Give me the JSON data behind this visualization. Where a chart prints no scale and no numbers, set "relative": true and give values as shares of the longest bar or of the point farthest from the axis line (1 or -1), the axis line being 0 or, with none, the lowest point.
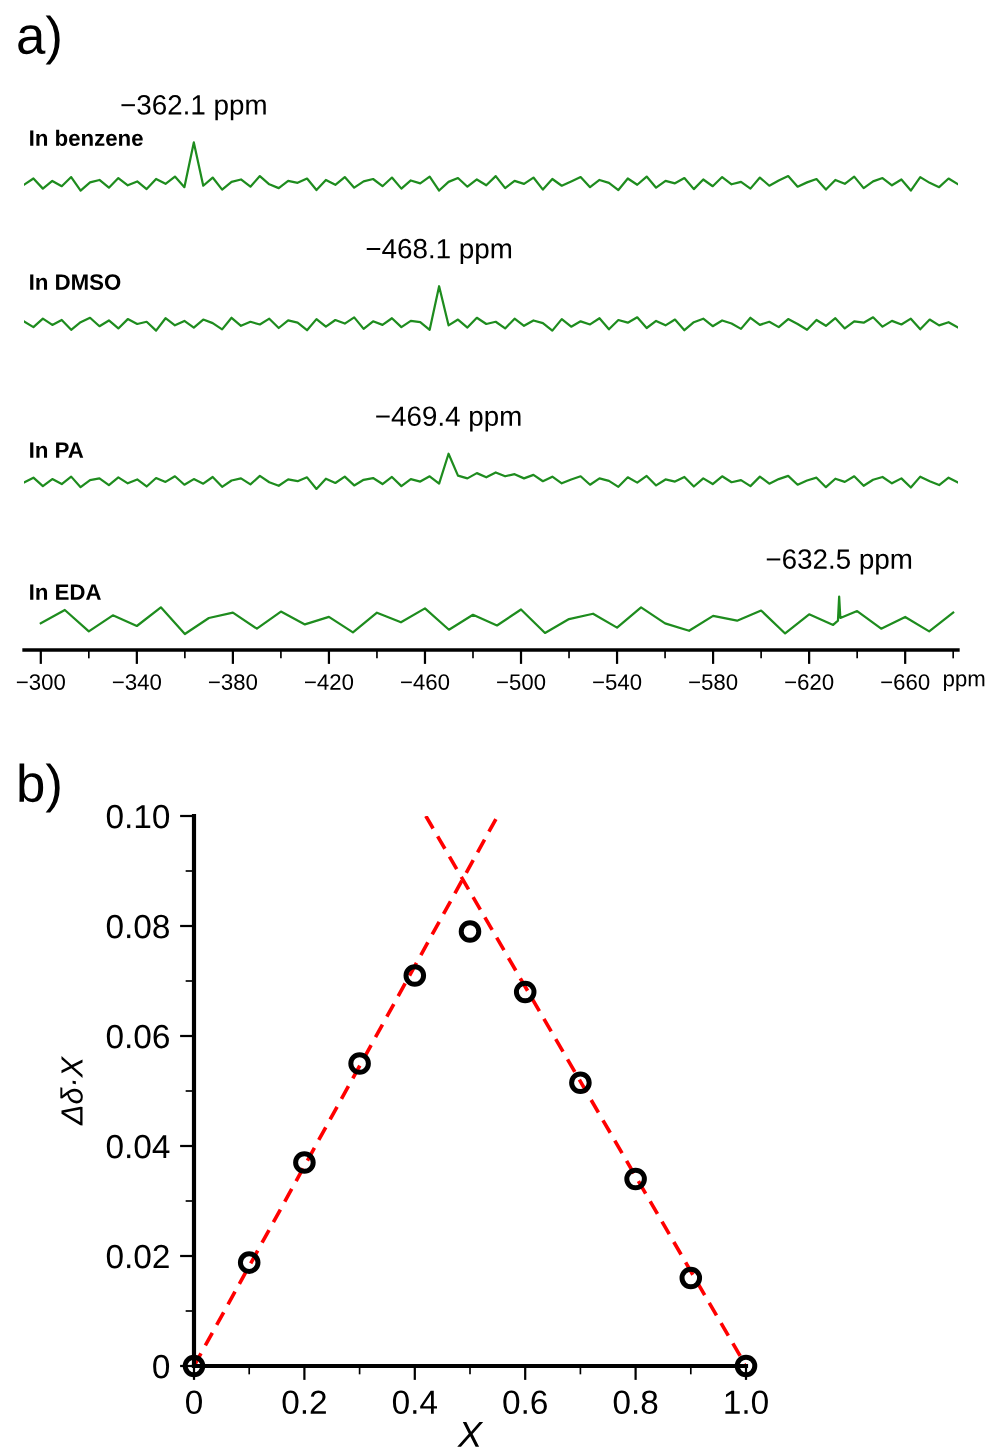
{
  "chart_data": [
    {
      "type": "line",
      "relative": true,
      "title": "In benzene",
      "color": "#1e8c1e",
      "tick_labels": false,
      "annotations": [
        "a)",
        {
          "text": "−362.1 ppm",
          "y": 1
        }
      ],
      "categories": [
        null,
        null,
        null,
        null,
        null,
        null,
        null,
        null,
        null,
        null,
        null,
        null,
        null,
        null,
        null,
        null,
        null,
        null,
        null,
        null,
        null,
        null,
        null,
        null,
        null,
        null,
        null,
        null,
        null,
        null,
        null,
        null,
        null,
        null,
        null,
        null,
        null,
        null,
        null,
        null,
        null,
        null,
        null,
        null,
        null,
        null,
        null,
        null,
        null,
        null,
        null,
        null,
        null,
        null,
        null,
        null,
        null,
        null,
        null,
        null,
        null,
        null,
        null,
        null,
        null,
        null,
        null,
        null,
        null,
        null,
        null,
        null,
        null,
        null,
        null,
        null,
        null,
        null,
        null,
        null,
        null,
        null,
        null,
        null,
        null,
        null,
        null,
        null,
        null,
        null,
        null,
        null,
        null,
        null,
        null,
        null,
        null,
        null,
        null,
        null
      ],
      "values": [
        0.12,
        0.25,
        0.04,
        0.2,
        0.09,
        0.28,
        0.0,
        0.17,
        0.22,
        0.06,
        0.26,
        0.11,
        0.19,
        0.03,
        0.24,
        0.14,
        0.29,
        0.07,
        1,
        0.1,
        0.27,
        0.02,
        0.18,
        0.23,
        0.08,
        0.3,
        0.13,
        0.05,
        0.2,
        0.16,
        0.25,
        0.01,
        0.22,
        0.12,
        0.28,
        0.06,
        0.19,
        0.24,
        0.09,
        0.27,
        0.04,
        0.21,
        0.15,
        0.29,
        0.0,
        0.18,
        0.26,
        0.08,
        0.23,
        0.11,
        0.3,
        0.05,
        0.2,
        0.14,
        0.27,
        0.02,
        0.24,
        0.1,
        0.19,
        0.28,
        0.07,
        0.22,
        0.16,
        0.01,
        0.25,
        0.12,
        0.29,
        0.06,
        0.2,
        0.15,
        0.26,
        0.03,
        0.23,
        0.09,
        0.28,
        0.13,
        0.18,
        0.04,
        0.27,
        0.1,
        0.21,
        0.3,
        0.08,
        0.17,
        0.24,
        0.02,
        0.22,
        0.14,
        0.29,
        0.05,
        0.19,
        0.26,
        0.11,
        0.23,
        0.0,
        0.28,
        0.16,
        0.07,
        0.25,
        0.13
      ]
    },
    {
      "type": "line",
      "relative": true,
      "title": "In DMSO",
      "color": "#1e8c1e",
      "tick_labels": false,
      "annotations": [
        {
          "text": "−468.1 ppm",
          "y": 1
        }
      ],
      "categories": [
        null,
        null,
        null,
        null,
        null,
        null,
        null,
        null,
        null,
        null,
        null,
        null,
        null,
        null,
        null,
        null,
        null,
        null,
        null,
        null,
        null,
        null,
        null,
        null,
        null,
        null,
        null,
        null,
        null,
        null,
        null,
        null,
        null,
        null,
        null,
        null,
        null,
        null,
        null,
        null,
        null,
        null,
        null,
        null,
        null,
        null,
        null,
        null,
        null,
        null,
        null,
        null,
        null,
        null,
        null,
        null,
        null,
        null,
        null,
        null,
        null,
        null,
        null,
        null,
        null,
        null,
        null,
        null,
        null,
        null,
        null,
        null,
        null,
        null,
        null,
        null,
        null,
        null,
        null,
        null,
        null,
        null,
        null,
        null,
        null,
        null,
        null,
        null,
        null,
        null,
        null,
        null,
        null,
        null,
        null,
        null,
        null,
        null,
        null,
        null
      ],
      "values": [
        0.21,
        0.08,
        0.27,
        0.13,
        0.24,
        0.02,
        0.19,
        0.29,
        0.1,
        0.23,
        0.05,
        0.26,
        0.15,
        0.2,
        0.0,
        0.28,
        0.12,
        0.22,
        0.07,
        0.25,
        0.17,
        0.03,
        0.29,
        0.11,
        0.2,
        0.14,
        0.27,
        0.06,
        0.23,
        0.18,
        0.01,
        0.26,
        0.09,
        0.24,
        0.16,
        0.3,
        0.04,
        0.21,
        0.13,
        0.28,
        0.08,
        0.22,
        0.19,
        0.02,
        1,
        0.12,
        0.25,
        0.07,
        0.29,
        0.15,
        0.2,
        0.05,
        0.27,
        0.11,
        0.23,
        0.17,
        0.0,
        0.26,
        0.09,
        0.21,
        0.14,
        0.28,
        0.03,
        0.24,
        0.18,
        0.3,
        0.06,
        0.22,
        0.12,
        0.25,
        0.01,
        0.19,
        0.27,
        0.1,
        0.23,
        0.16,
        0.04,
        0.29,
        0.13,
        0.2,
        0.08,
        0.26,
        0.15,
        0.02,
        0.24,
        0.11,
        0.28,
        0.05,
        0.21,
        0.18,
        0.3,
        0.09,
        0.22,
        0.14,
        0.27,
        0.03,
        0.25,
        0.12,
        0.19,
        0.07
      ]
    },
    {
      "type": "line",
      "relative": true,
      "title": "In PA",
      "color": "#1e8c1e",
      "tick_labels": false,
      "annotations": [
        {
          "text": "−469.4 ppm",
          "y": 1
        }
      ],
      "categories": [
        null,
        null,
        null,
        null,
        null,
        null,
        null,
        null,
        null,
        null,
        null,
        null,
        null,
        null,
        null,
        null,
        null,
        null,
        null,
        null,
        null,
        null,
        null,
        null,
        null,
        null,
        null,
        null,
        null,
        null,
        null,
        null,
        null,
        null,
        null,
        null,
        null,
        null,
        null,
        null,
        null,
        null,
        null,
        null,
        null,
        null,
        null,
        null,
        null,
        null,
        null,
        null,
        null,
        null,
        null,
        null,
        null,
        null,
        null,
        null,
        null,
        null,
        null,
        null,
        null,
        null,
        null,
        null,
        null,
        null,
        null,
        null,
        null,
        null,
        null,
        null,
        null,
        null,
        null,
        null,
        null,
        null,
        null,
        null,
        null,
        null,
        null,
        null,
        null,
        null,
        null,
        null,
        null,
        null,
        null,
        null,
        null,
        null,
        null,
        null
      ],
      "values": [
        0.18,
        0.32,
        0.08,
        0.28,
        0.14,
        0.35,
        0.05,
        0.25,
        0.3,
        0.11,
        0.33,
        0.16,
        0.27,
        0.07,
        0.31,
        0.2,
        0.36,
        0.12,
        0.28,
        0.15,
        0.34,
        0.06,
        0.24,
        0.3,
        0.13,
        0.37,
        0.19,
        0.09,
        0.27,
        0.22,
        0.33,
        0.0,
        0.29,
        0.17,
        0.35,
        0.1,
        0.26,
        0.31,
        0.14,
        0.34,
        0.08,
        0.28,
        0.21,
        0.36,
        0.15,
        1,
        0.38,
        0.3,
        0.45,
        0.33,
        0.47,
        0.36,
        0.42,
        0.3,
        0.4,
        0.22,
        0.35,
        0.16,
        0.27,
        0.36,
        0.12,
        0.3,
        0.23,
        0.06,
        0.33,
        0.18,
        0.37,
        0.1,
        0.27,
        0.21,
        0.34,
        0.07,
        0.3,
        0.14,
        0.36,
        0.19,
        0.25,
        0.08,
        0.35,
        0.15,
        0.28,
        0.37,
        0.12,
        0.24,
        0.32,
        0.05,
        0.29,
        0.2,
        0.36,
        0.09,
        0.26,
        0.34,
        0.16,
        0.3,
        0.04,
        0.35,
        0.22,
        0.11,
        0.32,
        0.18
      ]
    },
    {
      "type": "line",
      "relative": true,
      "title": "In EDA",
      "color": "#1e8c1e",
      "tick_labels": "x",
      "xlabel": "ppm",
      "xlim": [
        -293,
        -682
      ],
      "annotations": [
        {
          "text": "−632.5 ppm",
          "x": -632.5,
          "y": 1
        }
      ],
      "xticks": [
        {
          "value": -300,
          "label": "−300"
        },
        {
          "value": -340,
          "label": "−340"
        },
        {
          "value": -380,
          "label": "−380"
        },
        {
          "value": -420,
          "label": "−420"
        },
        {
          "value": -460,
          "label": "−460"
        },
        {
          "value": -500,
          "label": "−500"
        },
        {
          "value": -540,
          "label": "−540"
        },
        {
          "value": -580,
          "label": "−580"
        },
        {
          "value": -620,
          "label": "−620"
        },
        {
          "value": -660,
          "label": "−660"
        }
      ],
      "x": [
        -300,
        -310,
        -320,
        -330,
        -340,
        -350,
        -360,
        -370,
        -380,
        -390,
        -400,
        -410,
        -420,
        -430,
        -440,
        -450,
        -460,
        -470,
        -480,
        -490,
        -500,
        -510,
        -520,
        -530,
        -540,
        -550,
        -560,
        -570,
        -580,
        -590,
        -600,
        -610,
        -620,
        -630,
        -632,
        -632.5,
        -633,
        -640,
        -650,
        -660,
        -670,
        -680
      ],
      "values": [
        0.5,
        0.75,
        0.35,
        0.65,
        0.45,
        0.8,
        0.3,
        0.6,
        0.7,
        0.4,
        0.72,
        0.48,
        0.62,
        0.33,
        0.7,
        0.52,
        0.78,
        0.38,
        0.66,
        0.46,
        0.76,
        0.32,
        0.58,
        0.68,
        0.42,
        0.8,
        0.5,
        0.36,
        0.64,
        0.55,
        0.74,
        0.31,
        0.67,
        0.47,
        0.55,
        1,
        0.6,
        0.73,
        0.4,
        0.62,
        0.35,
        0.7
      ]
    },
    {
      "type": "scatter",
      "xlabel": "X",
      "ylabel": "Δδ·X",
      "annotations": [
        "b)"
      ],
      "xlim": [
        0,
        1.0
      ],
      "ylim": [
        0,
        0.1
      ],
      "xticks": [
        0,
        0.2,
        0.4,
        0.6,
        0.8,
        {
          "value": 1.0,
          "label": "1.0"
        }
      ],
      "yticks": [
        0,
        0.02,
        0.04,
        0.06,
        0.08,
        {
          "value": 0.1,
          "label": "0.10"
        }
      ],
      "x": [
        0,
        0.1,
        0.2,
        0.3,
        0.4,
        0.5,
        0.6,
        0.7,
        0.8,
        0.9,
        1.0
      ],
      "series": [
        {
          "type": "scatter",
          "marker": "circle",
          "color": "#000000",
          "values": [
            0,
            0.0188,
            0.037,
            0.055,
            0.071,
            0.079,
            0.068,
            0.0515,
            0.034,
            0.016,
            0
          ]
        },
        {
          "type": "line",
          "color": "#ff0000",
          "line_style": "dashed",
          "x": [
            0,
            0.55
          ],
          "values": [
            0,
            0.1
          ]
        },
        {
          "type": "line",
          "color": "#ff0000",
          "line_style": "dashed",
          "x": [
            0.42,
            1.0
          ],
          "values": [
            0.1,
            0
          ]
        }
      ]
    }
  ]
}
